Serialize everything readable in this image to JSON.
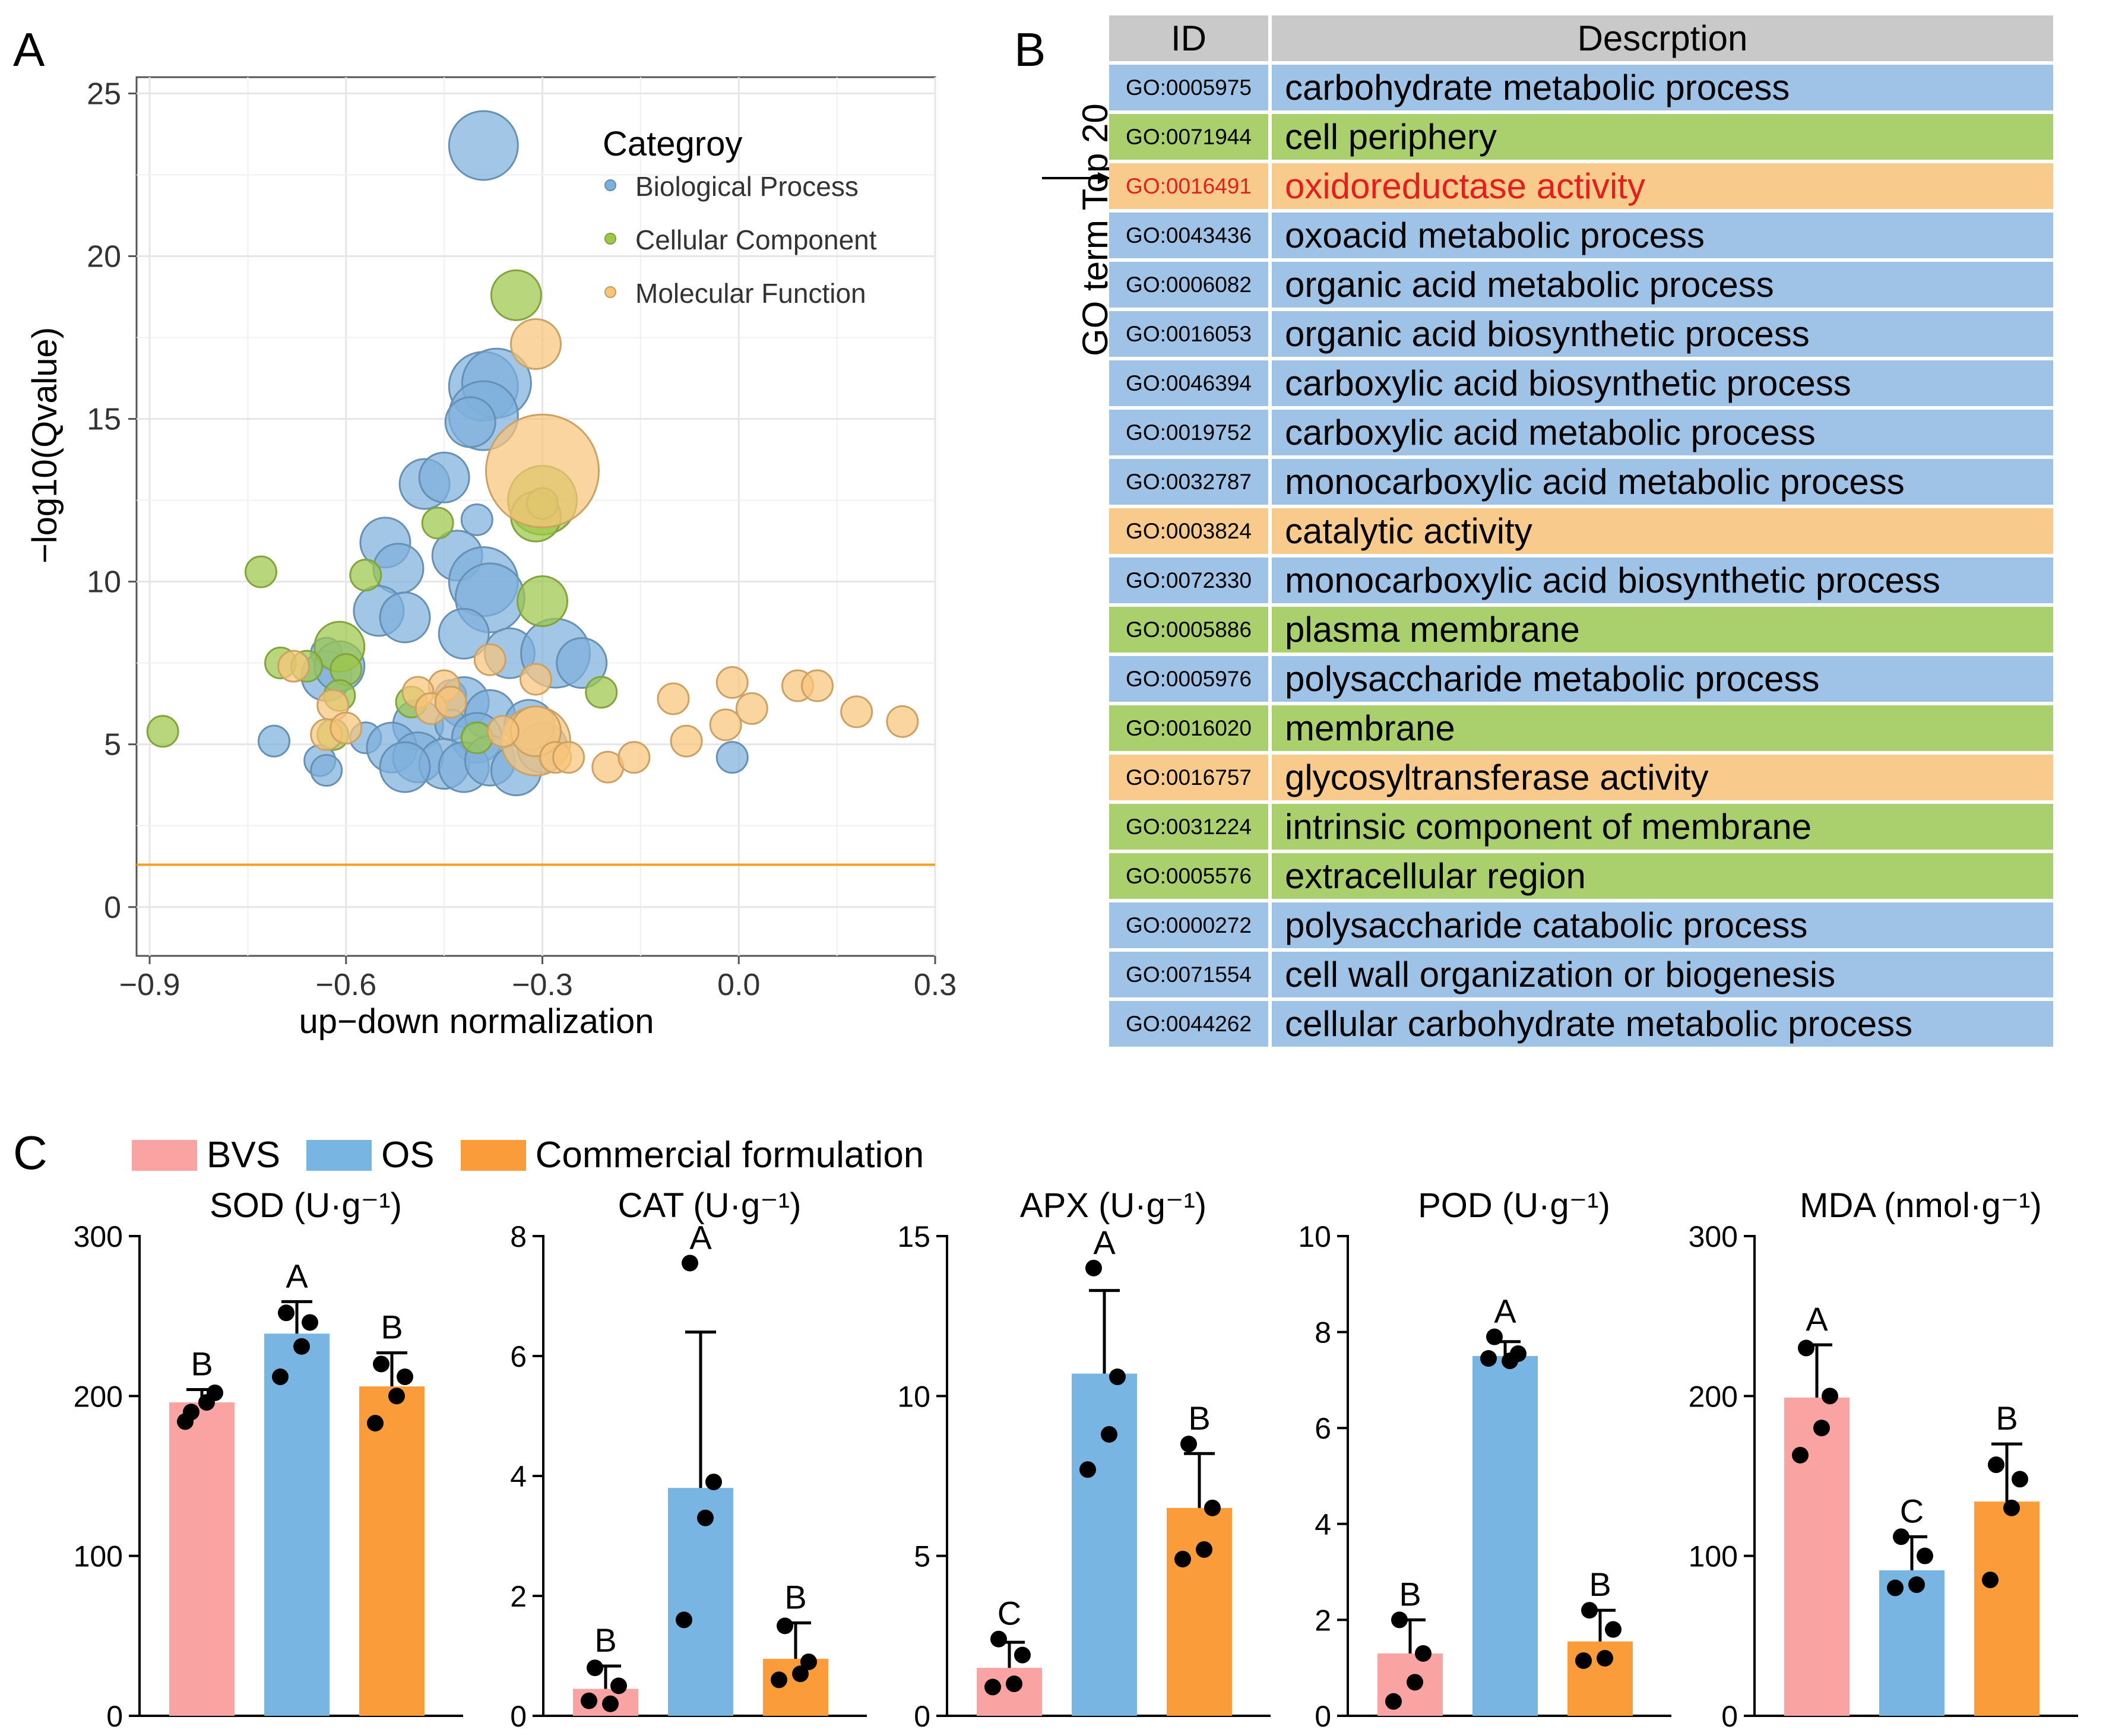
{
  "panels": {
    "a": "A",
    "b": "B",
    "c": "C"
  },
  "colors": {
    "biological": "#7eb0dd",
    "cellular": "#9dc84a",
    "molecular": "#f9c57a",
    "bvs": "#f9a3a3",
    "os": "#78b5e3",
    "commercial": "#fb9c3a",
    "threshold": "#f4a020"
  },
  "chart_data": [
    {
      "id": "A",
      "type": "scatter",
      "xlabel": "up−down normalization",
      "ylabel": "−log10(Qvalue)",
      "xlim": [
        -0.92,
        0.3
      ],
      "ylim": [
        -1.5,
        25.5
      ],
      "xticks": [
        -0.9,
        -0.6,
        -0.3,
        0.0,
        0.3
      ],
      "xtick_labels": [
        "−0.9",
        "−0.6",
        "−0.3",
        "0.0",
        "0.3"
      ],
      "yticks": [
        0,
        5,
        10,
        15,
        20,
        25
      ],
      "threshold_y": 1.3,
      "legend_title": "Categroy",
      "legend_position": "top-right",
      "series": [
        {
          "name": "Biological Process",
          "color_key": "biological",
          "points": [
            [
              -0.39,
              23.4,
              3
            ],
            [
              -0.39,
              16.0,
              3
            ],
            [
              -0.37,
              16.1,
              3
            ],
            [
              -0.39,
              15.1,
              3
            ],
            [
              -0.41,
              14.9,
              2
            ],
            [
              -0.48,
              13.0,
              2
            ],
            [
              -0.45,
              13.2,
              2
            ],
            [
              -0.4,
              11.9,
              1
            ],
            [
              -0.54,
              11.2,
              2
            ],
            [
              -0.43,
              10.8,
              2
            ],
            [
              -0.52,
              10.4,
              2
            ],
            [
              -0.39,
              10.0,
              3
            ],
            [
              -0.38,
              9.5,
              3
            ],
            [
              -0.55,
              9.1,
              2
            ],
            [
              -0.51,
              8.9,
              2
            ],
            [
              -0.42,
              8.4,
              2
            ],
            [
              -0.35,
              7.8,
              2
            ],
            [
              -0.28,
              7.8,
              3
            ],
            [
              -0.63,
              7.8,
              1
            ],
            [
              -0.24,
              7.5,
              2
            ],
            [
              -0.63,
              7.1,
              2
            ],
            [
              -0.61,
              7.4,
              2
            ],
            [
              -0.44,
              6.5,
              1
            ],
            [
              -0.42,
              6.3,
              2
            ],
            [
              -0.38,
              5.9,
              2
            ],
            [
              -0.49,
              5.6,
              2
            ],
            [
              -0.44,
              5.6,
              1
            ],
            [
              -0.71,
              5.1,
              1
            ],
            [
              -0.4,
              5.2,
              2
            ],
            [
              -0.57,
              5.2,
              1
            ],
            [
              -0.53,
              4.9,
              2
            ],
            [
              -0.49,
              4.6,
              2
            ],
            [
              -0.45,
              4.4,
              2
            ],
            [
              -0.42,
              4.3,
              2
            ],
            [
              -0.38,
              4.5,
              2
            ],
            [
              -0.34,
              4.2,
              2
            ],
            [
              -0.3,
              4.9,
              2
            ],
            [
              -0.32,
              5.6,
              2
            ],
            [
              -0.64,
              4.5,
              1
            ],
            [
              -0.63,
              4.2,
              1
            ],
            [
              -0.51,
              4.3,
              2
            ],
            [
              -0.01,
              4.6,
              1
            ]
          ]
        },
        {
          "name": "Cellular Component",
          "color_key": "cellular",
          "points": [
            [
              -0.34,
              18.8,
              2
            ],
            [
              -0.3,
              12.5,
              3
            ],
            [
              -0.31,
              12.0,
              2
            ],
            [
              -0.3,
              12.4,
              1
            ],
            [
              -0.46,
              11.8,
              1
            ],
            [
              -0.3,
              9.4,
              2
            ],
            [
              -0.73,
              10.3,
              1
            ],
            [
              -0.57,
              10.2,
              1
            ],
            [
              -0.61,
              8.0,
              2
            ],
            [
              -0.6,
              7.3,
              1
            ],
            [
              -0.7,
              7.5,
              1
            ],
            [
              -0.66,
              7.4,
              1
            ],
            [
              -0.61,
              6.5,
              1
            ],
            [
              -0.5,
              6.3,
              1
            ],
            [
              -0.21,
              6.6,
              1
            ],
            [
              -0.62,
              5.3,
              1
            ],
            [
              -0.4,
              5.2,
              1
            ],
            [
              -0.88,
              5.4,
              1
            ]
          ]
        },
        {
          "name": "Molecular Function",
          "color_key": "molecular",
          "points": [
            [
              -0.31,
              17.3,
              2
            ],
            [
              -0.3,
              13.4,
              4
            ],
            [
              -0.31,
              5.1,
              3
            ],
            [
              -0.31,
              5.4,
              2
            ],
            [
              -0.68,
              7.4,
              1
            ],
            [
              -0.62,
              6.2,
              1
            ],
            [
              -0.45,
              6.8,
              1
            ],
            [
              -0.38,
              7.6,
              1
            ],
            [
              -0.49,
              6.6,
              1
            ],
            [
              -0.47,
              6.1,
              1
            ],
            [
              -0.44,
              6.3,
              1
            ],
            [
              -0.63,
              5.3,
              1
            ],
            [
              -0.6,
              5.5,
              1
            ],
            [
              -0.31,
              7.0,
              1
            ],
            [
              -0.36,
              5.4,
              1
            ],
            [
              -0.28,
              4.6,
              1
            ],
            [
              -0.26,
              4.6,
              1
            ],
            [
              -0.2,
              4.3,
              1
            ],
            [
              -0.16,
              4.6,
              1
            ],
            [
              -0.1,
              6.4,
              1
            ],
            [
              -0.08,
              5.1,
              1
            ],
            [
              -0.02,
              5.6,
              1
            ],
            [
              -0.01,
              6.9,
              1
            ],
            [
              0.02,
              6.1,
              1
            ],
            [
              0.09,
              6.8,
              1
            ],
            [
              0.12,
              6.8,
              1
            ],
            [
              0.18,
              6.0,
              1
            ],
            [
              0.25,
              5.7,
              1
            ]
          ]
        }
      ]
    },
    {
      "id": "B",
      "type": "table",
      "columns": [
        "ID",
        "Descrption"
      ],
      "side_label": "GO term Top 20",
      "rows": [
        {
          "id": "GO:0005975",
          "desc": "carbohydrate metabolic process",
          "cat": "biological"
        },
        {
          "id": "GO:0071944",
          "desc": "cell periphery",
          "cat": "cellular"
        },
        {
          "id": "GO:0016491",
          "desc": "oxidoreductase activity",
          "cat": "molecular",
          "highlight": true
        },
        {
          "id": "GO:0043436",
          "desc": "oxoacid metabolic process",
          "cat": "biological"
        },
        {
          "id": "GO:0006082",
          "desc": "organic acid metabolic process",
          "cat": "biological"
        },
        {
          "id": "GO:0016053",
          "desc": "organic acid biosynthetic process",
          "cat": "biological"
        },
        {
          "id": "GO:0046394",
          "desc": "carboxylic acid biosynthetic process",
          "cat": "biological"
        },
        {
          "id": "GO:0019752",
          "desc": "carboxylic acid metabolic process",
          "cat": "biological"
        },
        {
          "id": "GO:0032787",
          "desc": "monocarboxylic acid metabolic process",
          "cat": "biological"
        },
        {
          "id": "GO:0003824",
          "desc": "catalytic activity",
          "cat": "molecular"
        },
        {
          "id": "GO:0072330",
          "desc": "monocarboxylic acid biosynthetic process",
          "cat": "biological"
        },
        {
          "id": "GO:0005886",
          "desc": "plasma membrane",
          "cat": "cellular"
        },
        {
          "id": "GO:0005976",
          "desc": "polysaccharide metabolic process",
          "cat": "biological"
        },
        {
          "id": "GO:0016020",
          "desc": "membrane",
          "cat": "cellular"
        },
        {
          "id": "GO:0016757",
          "desc": "glycosyltransferase activity",
          "cat": "molecular"
        },
        {
          "id": "GO:0031224",
          "desc": "intrinsic component of membrane",
          "cat": "cellular"
        },
        {
          "id": "GO:0005576",
          "desc": "extracellular region",
          "cat": "cellular"
        },
        {
          "id": "GO:0000272",
          "desc": "polysaccharide catabolic process",
          "cat": "biological"
        },
        {
          "id": "GO:0071554",
          "desc": "cell wall organization or biogenesis",
          "cat": "biological"
        },
        {
          "id": "GO:0044262",
          "desc": "cellular carbohydrate metabolic process",
          "cat": "biological"
        }
      ]
    },
    {
      "id": "C",
      "type": "bar",
      "legend": [
        {
          "name": "BVS",
          "color_key": "bvs"
        },
        {
          "name": "OS",
          "color_key": "os"
        },
        {
          "name": "Commercial formulation",
          "color_key": "commercial"
        }
      ],
      "subplots": [
        {
          "title": "SOD (U·g⁻¹)",
          "ylim": [
            0,
            300
          ],
          "yticks": [
            0,
            100,
            200,
            300
          ],
          "bars": [
            {
              "value": 196,
              "err": 8,
              "letter": "B",
              "points": [
                190,
                202,
                196,
                184
              ]
            },
            {
              "value": 239,
              "err": 20,
              "letter": "A",
              "points": [
                252,
                246,
                231,
                212
              ]
            },
            {
              "value": 206,
              "err": 21,
              "letter": "B",
              "points": [
                220,
                212,
                200,
                183
              ]
            }
          ]
        },
        {
          "title": "CAT (U·g⁻¹)",
          "ylim": [
            0,
            8
          ],
          "yticks": [
            0,
            2,
            4,
            6,
            8
          ],
          "bars": [
            {
              "value": 0.45,
              "err": 0.38,
              "letter": "B",
              "points": [
                0.8,
                0.5,
                0.2,
                0.25
              ]
            },
            {
              "value": 3.8,
              "err": 2.6,
              "letter": "A",
              "points": [
                7.55,
                3.9,
                3.3,
                1.6
              ]
            },
            {
              "value": 0.95,
              "err": 0.6,
              "letter": "B",
              "points": [
                1.5,
                0.9,
                0.7,
                0.6
              ]
            }
          ]
        },
        {
          "title": "APX (U·g⁻¹)",
          "ylim": [
            0,
            15
          ],
          "yticks": [
            0,
            5,
            10,
            15
          ],
          "bars": [
            {
              "value": 1.5,
              "err": 0.8,
              "letter": "C",
              "points": [
                2.4,
                1.9,
                1.0,
                0.9
              ]
            },
            {
              "value": 10.7,
              "err": 2.6,
              "letter": "A",
              "points": [
                14.0,
                10.6,
                8.8,
                7.7
              ]
            },
            {
              "value": 6.5,
              "err": 1.7,
              "letter": "B",
              "points": [
                8.5,
                6.5,
                5.2,
                4.9
              ]
            }
          ]
        },
        {
          "title": "POD (U·g⁻¹)",
          "ylim": [
            0,
            10
          ],
          "yticks": [
            0,
            2,
            4,
            6,
            8,
            10
          ],
          "bars": [
            {
              "value": 1.3,
              "err": 0.7,
              "letter": "B",
              "points": [
                2.0,
                1.3,
                0.7,
                0.3
              ]
            },
            {
              "value": 7.5,
              "err": 0.3,
              "letter": "A",
              "points": [
                7.9,
                7.55,
                7.4,
                7.45
              ]
            },
            {
              "value": 1.55,
              "err": 0.65,
              "letter": "B",
              "points": [
                2.2,
                1.8,
                1.2,
                1.15
              ]
            }
          ]
        },
        {
          "title": "MDA (nmol·g⁻¹)",
          "ylim": [
            0,
            300
          ],
          "yticks": [
            0,
            100,
            200,
            300
          ],
          "bars": [
            {
              "value": 199,
              "err": 33,
              "letter": "A",
              "points": [
                230,
                200,
                180,
                163
              ]
            },
            {
              "value": 91,
              "err": 21,
              "letter": "C",
              "points": [
                112,
                100,
                82,
                80
              ]
            },
            {
              "value": 134,
              "err": 36,
              "letter": "B",
              "points": [
                157,
                148,
                130,
                85
              ]
            }
          ]
        }
      ]
    }
  ]
}
